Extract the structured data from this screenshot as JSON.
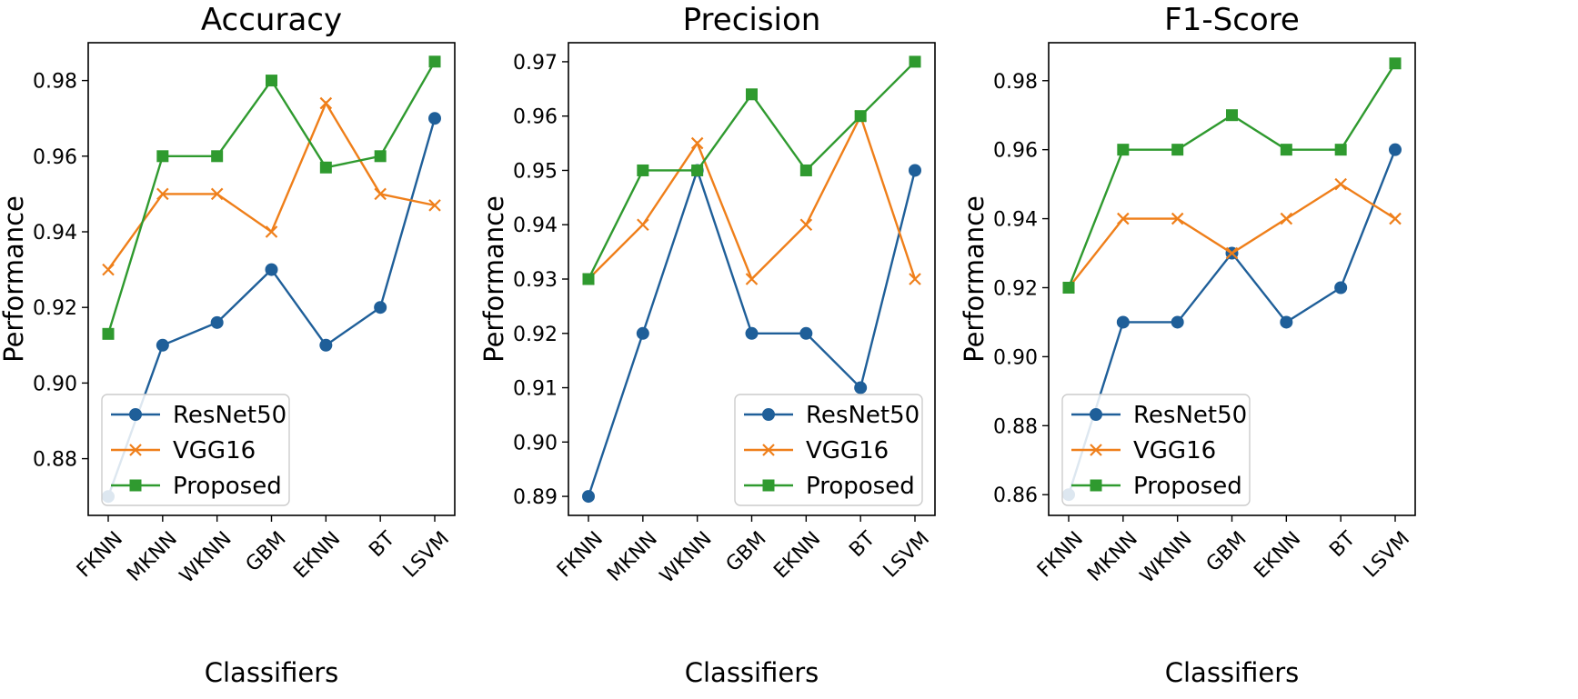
{
  "colors": {
    "ResNet50": "#1f5f99",
    "VGG16": "#ef7f1a",
    "Proposed": "#2f9a2f"
  },
  "chart_data": [
    {
      "type": "line",
      "title": "Accuracy",
      "xlabel": "Classifiers",
      "ylabel": "Performance",
      "categories": [
        "FKNN",
        "MKNN",
        "WKNN",
        "GBM",
        "EKNN",
        "BT",
        "LSVM"
      ],
      "ylim": [
        0.865,
        0.99
      ],
      "yticks": [
        "0.88",
        "0.90",
        "0.92",
        "0.94",
        "0.96",
        "0.98"
      ],
      "legend_position": "lower-left",
      "series": [
        {
          "name": "ResNet50",
          "marker": "circle",
          "values": [
            0.87,
            0.91,
            0.916,
            0.93,
            0.91,
            0.92,
            0.97
          ]
        },
        {
          "name": "VGG16",
          "marker": "x",
          "values": [
            0.93,
            0.95,
            0.95,
            0.94,
            0.974,
            0.95,
            0.947
          ]
        },
        {
          "name": "Proposed",
          "marker": "square",
          "values": [
            0.913,
            0.96,
            0.96,
            0.98,
            0.957,
            0.96,
            0.985
          ]
        }
      ]
    },
    {
      "type": "line",
      "title": "Precision",
      "xlabel": "Classifiers",
      "ylabel": "Performance",
      "categories": [
        "FKNN",
        "MKNN",
        "WKNN",
        "GBM",
        "EKNN",
        "BT",
        "LSVM"
      ],
      "ylim": [
        0.8865,
        0.9735
      ],
      "yticks": [
        "0.89",
        "0.90",
        "0.91",
        "0.92",
        "0.93",
        "0.94",
        "0.95",
        "0.96",
        "0.97"
      ],
      "legend_position": "lower-right",
      "series": [
        {
          "name": "ResNet50",
          "marker": "circle",
          "values": [
            0.89,
            0.92,
            0.95,
            0.92,
            0.92,
            0.91,
            0.95
          ]
        },
        {
          "name": "VGG16",
          "marker": "x",
          "values": [
            0.93,
            0.94,
            0.955,
            0.93,
            0.94,
            0.96,
            0.93
          ]
        },
        {
          "name": "Proposed",
          "marker": "square",
          "values": [
            0.93,
            0.95,
            0.95,
            0.964,
            0.95,
            0.96,
            0.97
          ]
        }
      ]
    },
    {
      "type": "line",
      "title": "F1-Score",
      "xlabel": "Classifiers",
      "ylabel": "Performance",
      "categories": [
        "FKNN",
        "MKNN",
        "WKNN",
        "GBM",
        "EKNN",
        "BT",
        "LSVM"
      ],
      "ylim": [
        0.854,
        0.991
      ],
      "yticks": [
        "0.86",
        "0.88",
        "0.90",
        "0.92",
        "0.94",
        "0.96",
        "0.98"
      ],
      "legend_position": "lower-left",
      "series": [
        {
          "name": "ResNet50",
          "marker": "circle",
          "values": [
            0.86,
            0.91,
            0.91,
            0.93,
            0.91,
            0.92,
            0.96
          ]
        },
        {
          "name": "VGG16",
          "marker": "x",
          "values": [
            0.92,
            0.94,
            0.94,
            0.93,
            0.94,
            0.95,
            0.94
          ]
        },
        {
          "name": "Proposed",
          "marker": "square",
          "values": [
            0.92,
            0.96,
            0.96,
            0.97,
            0.96,
            0.96,
            0.985
          ]
        }
      ]
    }
  ]
}
